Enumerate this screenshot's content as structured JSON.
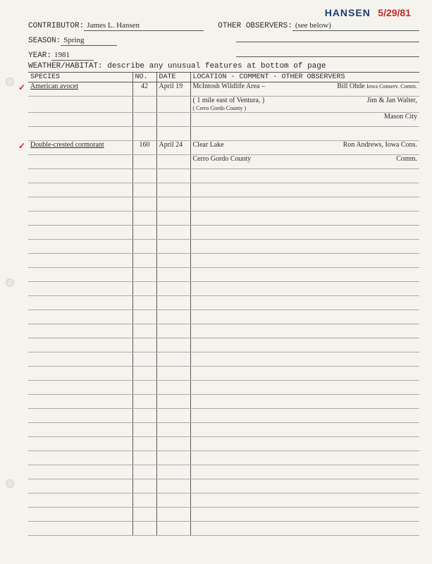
{
  "annotations": {
    "name": "HANSEN",
    "date": "5/29/81"
  },
  "header": {
    "contributor_label": "CONTRIBUTOR:",
    "contributor": "James L. Hansen",
    "other_observers_label": "OTHER OBSERVERS:",
    "other_observers": "(see below)",
    "season_label": "SEASON:",
    "season": "Spring",
    "year_label": "YEAR:",
    "year": "1981",
    "weather_label": "WEATHER/HABITAT: describe any unusual features at bottom of page"
  },
  "table": {
    "headers": {
      "species": "SPECIES",
      "no": "NO.",
      "date": "DATE",
      "location": "LOCATION - COMMENT - OTHER OBSERVERS"
    },
    "rows": [
      {
        "check": "✓",
        "species": "American avocet",
        "no": "42",
        "date": "April 19",
        "loc1": "McIntosh Wildlife Area –",
        "obs1": "Bill Ohde",
        "obs1_note": "Iowa Conserv. Comm."
      },
      {
        "species": "",
        "no": "",
        "date": "",
        "loc1": "( 1 mile east of Ventura, )",
        "loc2": "( Cerro Gordo County )",
        "obs1": "Jim & Jan Walter,"
      },
      {
        "species": "",
        "no": "",
        "date": "",
        "obs1": "Mason City"
      },
      {
        "species": "",
        "no": "",
        "date": "",
        "loc1": ""
      },
      {
        "check": "✓",
        "species": "Double-crested cormorant",
        "no": "160",
        "date": "April 24",
        "loc1": "Clear Lake",
        "obs1": "Ron Andrews, Iowa Cons."
      },
      {
        "species": "",
        "no": "",
        "date": "",
        "loc1": "Cerro Gordo County",
        "obs1": "Comm."
      }
    ]
  }
}
